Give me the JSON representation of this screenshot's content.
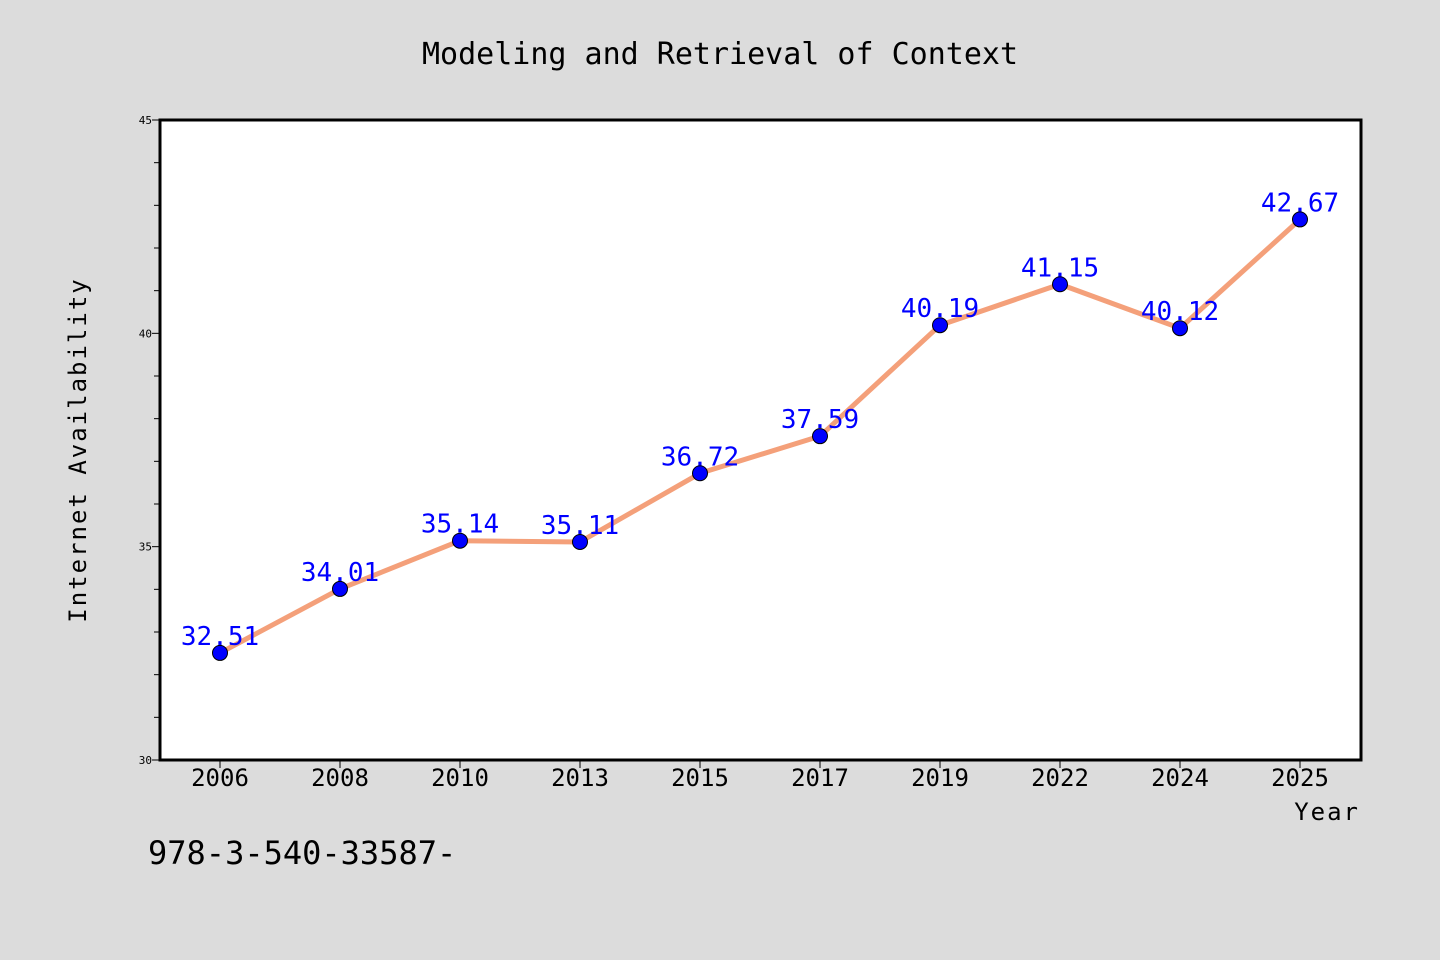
{
  "chart_data": {
    "type": "line",
    "title": "Modeling and Retrieval of Context",
    "xlabel": "Year",
    "ylabel": "Internet Availability",
    "categories": [
      "2006",
      "2008",
      "2010",
      "2013",
      "2015",
      "2017",
      "2019",
      "2022",
      "2024",
      "2025"
    ],
    "values": [
      32.51,
      34.01,
      35.14,
      35.11,
      36.72,
      37.59,
      40.19,
      41.15,
      40.12,
      42.67
    ],
    "data_labels": [
      "32.51",
      "34.01",
      "35.14",
      "35.11",
      "36.72",
      "37.59",
      "40.19",
      "41.15",
      "40.12",
      "42.67"
    ],
    "ylim": [
      30,
      45
    ],
    "yticks": [
      "30",
      "35",
      "40",
      "45"
    ],
    "grid": false,
    "line_color": "#f4a07a",
    "marker_color": "#0000ff",
    "label_color": "#0000ff",
    "footnote": "978-3-540-33587-"
  }
}
